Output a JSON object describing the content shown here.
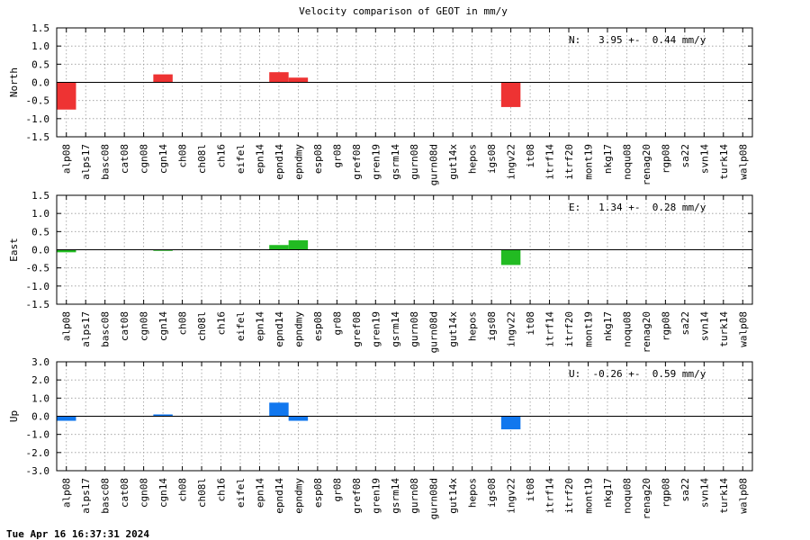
{
  "title": "Velocity comparison of GEOT in mm/y",
  "timestamp": "Tue Apr 16 16:37:31 2024",
  "chart_data": [
    {
      "type": "bar",
      "ylabel": "North",
      "ylim": [
        -1.5,
        1.5
      ],
      "yticks": [
        -1.5,
        -1.0,
        -0.5,
        0.0,
        0.5,
        1.0,
        1.5
      ],
      "ytick_labels": [
        "-1.5",
        "-1.0",
        "-0.5",
        "0.0",
        "0.5",
        "1.0",
        "1.5"
      ],
      "grid": true,
      "annotation": "N:   3.95 +-  0.44 mm/y",
      "color": "#ee3333",
      "categories": [
        "alp08",
        "alps17",
        "basc08",
        "cat08",
        "cgn08",
        "cgn14",
        "ch08",
        "ch08l",
        "ch16",
        "eifel",
        "epn14",
        "epnd14",
        "epndmy",
        "esp08",
        "gr08",
        "gref08",
        "gren19",
        "gsrm14",
        "gurn08",
        "gurn08d",
        "gut14x",
        "hepos",
        "igs08",
        "ingv22",
        "it08",
        "itrf14",
        "itrf20",
        "mont19",
        "nkg17",
        "noqu08",
        "renag20",
        "rgp08",
        "sa22",
        "svn14",
        "turk14",
        "walp08"
      ],
      "values": [
        -0.75,
        0,
        0,
        0,
        0,
        0.22,
        0,
        0,
        0,
        0,
        0,
        0.28,
        0.13,
        0,
        0,
        0,
        0,
        0,
        0,
        0,
        0,
        0,
        0,
        -0.68,
        0,
        0,
        0,
        0,
        0,
        0,
        0,
        0,
        0,
        0,
        0,
        0
      ]
    },
    {
      "type": "bar",
      "ylabel": "East",
      "ylim": [
        -1.5,
        1.5
      ],
      "yticks": [
        -1.5,
        -1.0,
        -0.5,
        0.0,
        0.5,
        1.0,
        1.5
      ],
      "ytick_labels": [
        "-1.5",
        "-1.0",
        "-0.5",
        "0.0",
        "0.5",
        "1.0",
        "1.5"
      ],
      "grid": true,
      "annotation": "E:   1.34 +-  0.28 mm/y",
      "color": "#22bb22",
      "categories": [
        "alp08",
        "alps17",
        "basc08",
        "cat08",
        "cgn08",
        "cgn14",
        "ch08",
        "ch08l",
        "ch16",
        "eifel",
        "epn14",
        "epnd14",
        "epndmy",
        "esp08",
        "gr08",
        "gref08",
        "gren19",
        "gsrm14",
        "gurn08",
        "gurn08d",
        "gut14x",
        "hepos",
        "igs08",
        "ingv22",
        "it08",
        "itrf14",
        "itrf20",
        "mont19",
        "nkg17",
        "noqu08",
        "renag20",
        "rgp08",
        "sa22",
        "svn14",
        "turk14",
        "walp08"
      ],
      "values": [
        -0.07,
        0,
        0,
        0,
        0,
        -0.03,
        0,
        0,
        0,
        0,
        0,
        0.13,
        0.26,
        0,
        0,
        0,
        0,
        0,
        0,
        0,
        0,
        0,
        0,
        -0.42,
        0,
        0,
        0,
        0,
        0,
        0,
        0,
        0,
        0,
        0,
        0,
        0
      ]
    },
    {
      "type": "bar",
      "ylabel": "Up",
      "ylim": [
        -3.0,
        3.0
      ],
      "yticks": [
        -3.0,
        -2.0,
        -1.0,
        0.0,
        1.0,
        2.0,
        3.0
      ],
      "ytick_labels": [
        "-3.0",
        "-2.0",
        "-1.0",
        "0.0",
        "1.0",
        "2.0",
        "3.0"
      ],
      "grid": true,
      "annotation": "U:  -0.26 +-  0.59 mm/y",
      "color": "#1177ee",
      "categories": [
        "alp08",
        "alps17",
        "basc08",
        "cat08",
        "cgn08",
        "cgn14",
        "ch08",
        "ch08l",
        "ch16",
        "eifel",
        "epn14",
        "epnd14",
        "epndmy",
        "esp08",
        "gr08",
        "gref08",
        "gren19",
        "gsrm14",
        "gurn08",
        "gurn08d",
        "gut14x",
        "hepos",
        "igs08",
        "ingv22",
        "it08",
        "itrf14",
        "itrf20",
        "mont19",
        "nkg17",
        "noqu08",
        "renag20",
        "rgp08",
        "sa22",
        "svn14",
        "turk14",
        "walp08"
      ],
      "values": [
        -0.25,
        0,
        0,
        0,
        0,
        0.1,
        0,
        0,
        0,
        0,
        0,
        0.75,
        -0.25,
        0,
        0,
        0,
        0,
        0,
        0,
        0,
        0,
        0,
        0,
        -0.72,
        0,
        0,
        0,
        0,
        0,
        0,
        0,
        0,
        0,
        0,
        0,
        0
      ]
    }
  ]
}
